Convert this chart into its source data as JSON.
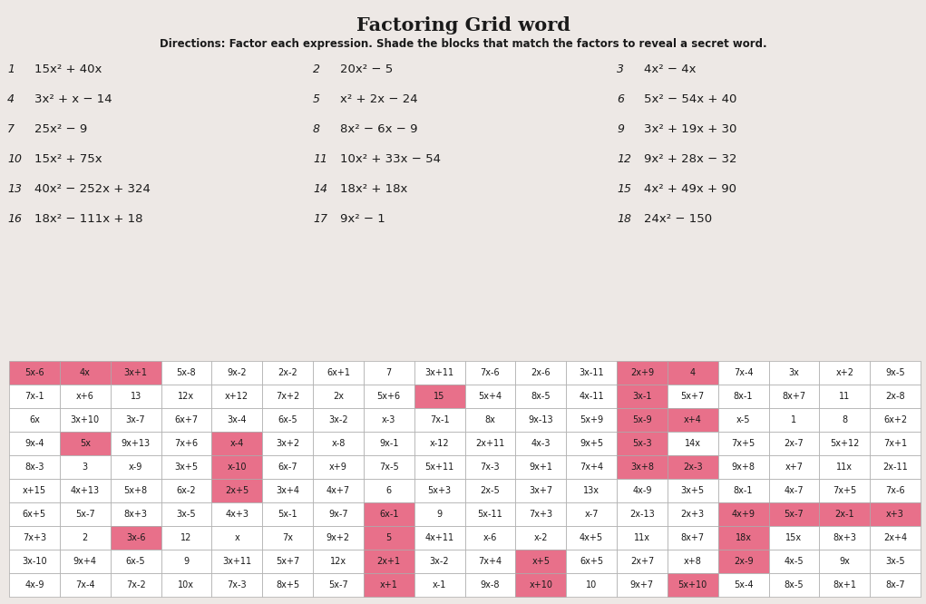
{
  "title": "Factoring Grid word",
  "subtitle": "Directions: Factor each expression. Shade the blocks that match the factors to reveal a secret word.",
  "problems_col1": [
    {
      "num": "1",
      "expr": "15x² + 40x"
    },
    {
      "num": "4",
      "expr": "3x² + x − 14"
    },
    {
      "num": "7",
      "expr": "25x² − 9"
    },
    {
      "num": "10",
      "expr": "15x² + 75x"
    },
    {
      "num": "13",
      "expr": "40x² − 252x + 324"
    },
    {
      "num": "16",
      "expr": "18x² − 111x + 18"
    }
  ],
  "problems_col2": [
    {
      "num": "2",
      "expr": "20x² − 5"
    },
    {
      "num": "5",
      "expr": "x² + 2x − 24"
    },
    {
      "num": "8",
      "expr": "8x² − 6x − 9"
    },
    {
      "num": "11",
      "expr": "10x² + 33x − 54"
    },
    {
      "num": "14",
      "expr": "18x² + 18x"
    },
    {
      "num": "17",
      "expr": "9x² − 1"
    }
  ],
  "problems_col3": [
    {
      "num": "3",
      "expr": "4x² − 4x"
    },
    {
      "num": "6",
      "expr": "5x² − 54x + 40"
    },
    {
      "num": "9",
      "expr": "3x² + 19x + 30"
    },
    {
      "num": "12",
      "expr": "9x² + 28x − 32"
    },
    {
      "num": "15",
      "expr": "4x² + 49x + 90"
    },
    {
      "num": "18",
      "expr": "24x² − 150"
    }
  ],
  "grid": [
    [
      "5x-6",
      "4x",
      "3x+1",
      "5x-8",
      "9x-2",
      "2x-2",
      "6x+1",
      "7",
      "3x+11",
      "7x-6",
      "2x-6",
      "3x-11",
      "2x+9",
      "4",
      "7x-4",
      "3x",
      "x+2",
      "9x-5"
    ],
    [
      "7x-1",
      "x+6",
      "13",
      "12x",
      "x+12",
      "7x+2",
      "2x",
      "5x+6",
      "15",
      "5x+4",
      "8x-5",
      "4x-11",
      "3x-1",
      "5x+7",
      "8x-1",
      "8x+7",
      "11",
      "2x-8"
    ],
    [
      "6x",
      "3x+10",
      "3x-7",
      "6x+7",
      "3x-4",
      "6x-5",
      "3x-2",
      "x-3",
      "7x-1",
      "8x",
      "9x-13",
      "5x+9",
      "5x-9",
      "x+4",
      "x-5",
      "1",
      "8",
      "6x+2"
    ],
    [
      "9x-4",
      "5x",
      "9x+13",
      "7x+6",
      "x-4",
      "3x+2",
      "x-8",
      "9x-1",
      "x-12",
      "2x+11",
      "4x-3",
      "9x+5",
      "5x-3",
      "14x",
      "7x+5",
      "2x-7",
      "5x+12",
      "7x+1"
    ],
    [
      "8x-3",
      "3",
      "x-9",
      "3x+5",
      "x-10",
      "6x-7",
      "x+9",
      "7x-5",
      "5x+11",
      "7x-3",
      "9x+1",
      "7x+4",
      "3x+8",
      "2x-3",
      "9x+8",
      "x+7",
      "11x",
      "2x-11"
    ],
    [
      "x+15",
      "4x+13",
      "5x+8",
      "6x-2",
      "2x+5",
      "3x+4",
      "4x+7",
      "6",
      "5x+3",
      "2x-5",
      "3x+7",
      "13x",
      "4x-9",
      "3x+5",
      "8x-1",
      "4x-7",
      "7x+5",
      "7x-6"
    ],
    [
      "6x+5",
      "5x-7",
      "8x+3",
      "3x-5",
      "4x+3",
      "5x-1",
      "9x-7",
      "6x-1",
      "9",
      "5x-11",
      "7x+3",
      "x-7",
      "2x-13",
      "2x+3",
      "4x+9",
      "5x-7",
      "2x-1",
      "x+3"
    ],
    [
      "7x+3",
      "2",
      "3x-6",
      "12",
      "x",
      "7x",
      "9x+2",
      "5",
      "4x+11",
      "x-6",
      "x-2",
      "4x+5",
      "11x",
      "8x+7",
      "18x",
      "15x",
      "8x+3",
      "2x+4"
    ],
    [
      "3x-10",
      "9x+4",
      "6x-5",
      "9",
      "3x+11",
      "5x+7",
      "12x",
      "2x+1",
      "3x-2",
      "7x+4",
      "x+5",
      "6x+5",
      "2x+7",
      "x+8",
      "2x-9",
      "4x-5",
      "9x",
      "3x-5"
    ],
    [
      "4x-9",
      "7x-4",
      "7x-2",
      "10x",
      "7x-3",
      "8x+5",
      "5x-7",
      "x+1",
      "x-1",
      "9x-8",
      "x+10",
      "10",
      "9x+7",
      "5x+10",
      "5x-4",
      "8x-5",
      "8x+1",
      "8x-7"
    ]
  ],
  "shaded": [
    [
      1,
      1,
      1,
      0,
      0,
      0,
      0,
      0,
      0,
      0,
      0,
      0,
      1,
      1,
      0,
      0,
      0,
      0
    ],
    [
      0,
      0,
      0,
      0,
      0,
      0,
      0,
      0,
      1,
      0,
      0,
      0,
      1,
      0,
      0,
      0,
      0,
      0
    ],
    [
      0,
      0,
      0,
      0,
      0,
      0,
      0,
      0,
      0,
      0,
      0,
      0,
      1,
      1,
      0,
      0,
      0,
      0
    ],
    [
      0,
      1,
      0,
      0,
      1,
      0,
      0,
      0,
      0,
      0,
      0,
      0,
      1,
      0,
      0,
      0,
      0,
      0
    ],
    [
      0,
      0,
      0,
      0,
      1,
      0,
      0,
      0,
      0,
      0,
      0,
      0,
      1,
      1,
      0,
      0,
      0,
      0
    ],
    [
      0,
      0,
      0,
      0,
      1,
      0,
      0,
      0,
      0,
      0,
      0,
      0,
      0,
      0,
      0,
      0,
      0,
      0
    ],
    [
      0,
      0,
      0,
      0,
      0,
      0,
      0,
      1,
      0,
      0,
      0,
      0,
      0,
      0,
      1,
      1,
      1,
      1
    ],
    [
      0,
      0,
      1,
      0,
      0,
      0,
      0,
      1,
      0,
      0,
      0,
      0,
      0,
      0,
      1,
      0,
      0,
      0
    ],
    [
      0,
      0,
      0,
      0,
      0,
      0,
      0,
      1,
      0,
      0,
      1,
      0,
      0,
      0,
      1,
      0,
      0,
      0
    ],
    [
      0,
      0,
      0,
      0,
      0,
      0,
      0,
      1,
      0,
      0,
      1,
      0,
      0,
      1,
      0,
      0,
      0,
      0
    ]
  ],
  "bg_color": "#ede8e5",
  "shaded_color": "#e8708a",
  "grid_line_color": "#aaaaaa",
  "text_color": "#1a1a1a",
  "title_fontsize": 15,
  "subtitle_fontsize": 8.5,
  "problem_fontsize": 9.5,
  "cell_fontsize": 7
}
